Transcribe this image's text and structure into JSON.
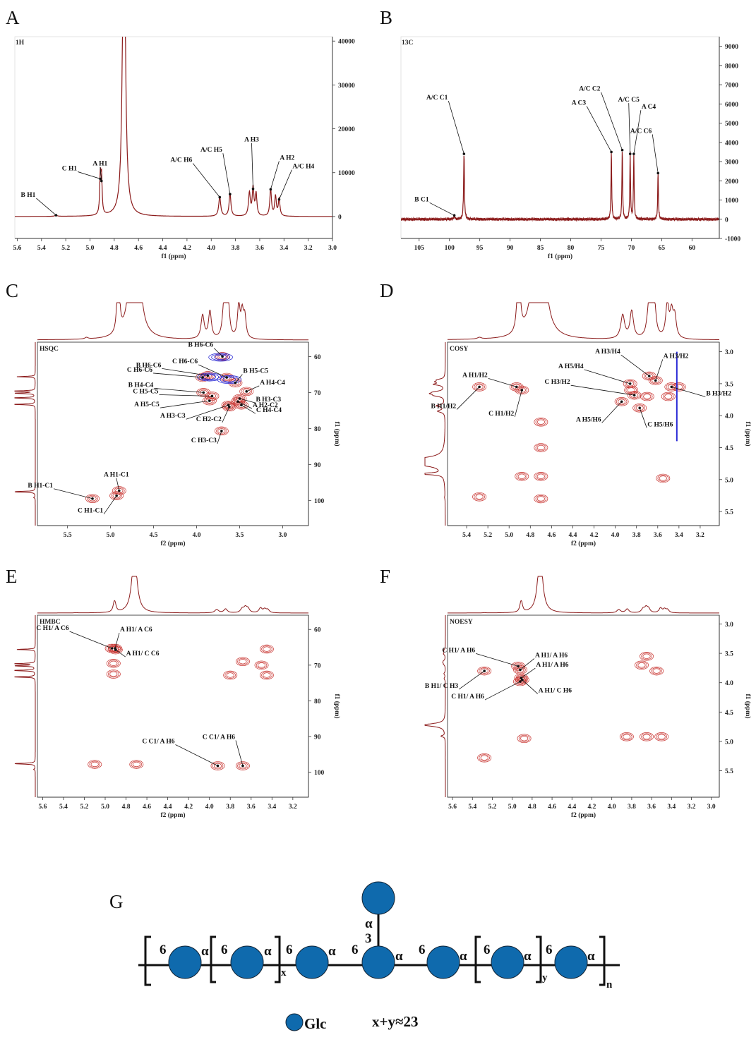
{
  "chart_data": [
    {
      "panel": "A",
      "type": "line",
      "title": "1H",
      "xlabel": "f1 (ppm)",
      "ylabel": "",
      "xlim": [
        5.62,
        3.0
      ],
      "ylim": [
        -5000,
        41000
      ],
      "xticks": [
        5.6,
        5.4,
        5.2,
        5.0,
        4.8,
        4.6,
        4.4,
        4.2,
        4.0,
        3.8,
        3.6,
        3.4,
        3.2,
        3.0
      ],
      "yticks": [
        0,
        10000,
        20000,
        30000,
        40000
      ],
      "peaks": [
        {
          "x": 4.72,
          "h": 80000,
          "w": 0.013
        },
        {
          "x": 4.915,
          "h": 8600,
          "w": 0.006
        },
        {
          "x": 4.905,
          "h": 8100,
          "w": 0.006
        },
        {
          "x": 5.28,
          "h": 300,
          "w": 0.01
        },
        {
          "x": 3.93,
          "h": 4400,
          "w": 0.01
        },
        {
          "x": 3.845,
          "h": 5100,
          "w": 0.009
        },
        {
          "x": 3.685,
          "h": 5200,
          "w": 0.009
        },
        {
          "x": 3.655,
          "h": 6300,
          "w": 0.008
        },
        {
          "x": 3.63,
          "h": 5000,
          "w": 0.008
        },
        {
          "x": 3.51,
          "h": 6200,
          "w": 0.008
        },
        {
          "x": 3.47,
          "h": 4500,
          "w": 0.008
        },
        {
          "x": 3.44,
          "h": 3900,
          "w": 0.008
        }
      ],
      "annotations": [
        {
          "text": "B H1",
          "x": 5.28,
          "y": 300
        },
        {
          "text": "C H1",
          "x": 4.915,
          "y": 8600
        },
        {
          "text": "A H1",
          "x": 4.905,
          "y": 8100
        },
        {
          "text": "A/C H6",
          "x": 3.93,
          "y": 4400
        },
        {
          "text": "A/C H5",
          "x": 3.845,
          "y": 5100
        },
        {
          "text": "A H3",
          "x": 3.655,
          "y": 6300
        },
        {
          "text": "A H2",
          "x": 3.51,
          "y": 6200
        },
        {
          "text": "A/C H4",
          "x": 3.44,
          "y": 3900
        }
      ]
    },
    {
      "panel": "B",
      "type": "line",
      "title": "13C",
      "xlabel": "f1 (ppm)",
      "ylabel": "",
      "xlim": [
        108,
        55.5
      ],
      "ylim": [
        -1000,
        9500
      ],
      "xticks": [
        105,
        100,
        95,
        90,
        85,
        80,
        75,
        70,
        65,
        60
      ],
      "yticks": [
        -1000,
        0,
        1000,
        2000,
        3000,
        4000,
        5000,
        6000,
        7000,
        8000,
        9000
      ],
      "peaks": [
        {
          "x": 97.6,
          "h": 3400,
          "w": 0.08
        },
        {
          "x": 99.2,
          "h": 200,
          "w": 0.1
        },
        {
          "x": 73.3,
          "h": 3500,
          "w": 0.07
        },
        {
          "x": 71.5,
          "h": 3600,
          "w": 0.07
        },
        {
          "x": 70.2,
          "h": 3400,
          "w": 0.07
        },
        {
          "x": 69.6,
          "h": 3400,
          "w": 0.07
        },
        {
          "x": 65.6,
          "h": 2400,
          "w": 0.07
        }
      ],
      "annotations": [
        {
          "text": "B C1",
          "x": 99.2,
          "y": 200
        },
        {
          "text": "A/C C1",
          "x": 97.6,
          "y": 3400
        },
        {
          "text": "A C3",
          "x": 73.3,
          "y": 3500
        },
        {
          "text": "A/C C2",
          "x": 71.5,
          "y": 3600
        },
        {
          "text": "A/C C5",
          "x": 70.2,
          "y": 3400
        },
        {
          "text": "A C4",
          "x": 69.6,
          "y": 3400
        },
        {
          "text": "A/C C6",
          "x": 65.6,
          "y": 2400
        }
      ]
    },
    {
      "panel": "C",
      "type": "heatmap",
      "title": "HSQC",
      "xlabel": "f2 (ppm)",
      "ylabel": "f1 (ppm)",
      "xlim": [
        5.85,
        2.7
      ],
      "ylim": [
        56,
        107
      ],
      "xticks": [
        5.5,
        5.0,
        4.5,
        4.0,
        3.5,
        3.0
      ],
      "yticks": [
        60,
        70,
        80,
        90,
        100
      ],
      "annotations": [
        {
          "text": "B H6-C6",
          "x": 3.7,
          "y": 60.0
        },
        {
          "text": "B H6-C6",
          "x": 3.87,
          "y": 65.3
        },
        {
          "text": "C H6-C6",
          "x": 3.93,
          "y": 65.8
        },
        {
          "text": "C H6-C6",
          "x": 3.65,
          "y": 65.8
        },
        {
          "text": "B H5-C5",
          "x": 3.55,
          "y": 67.3
        },
        {
          "text": "B H4-C4",
          "x": 3.92,
          "y": 70.0
        },
        {
          "text": "A H4-C4",
          "x": 3.42,
          "y": 69.7
        },
        {
          "text": "C H5-C5",
          "x": 3.82,
          "y": 71.0
        },
        {
          "text": "B H3-C3",
          "x": 3.5,
          "y": 71.7
        },
        {
          "text": "A H5-C5",
          "x": 3.85,
          "y": 72.3
        },
        {
          "text": "A H2-C2",
          "x": 3.52,
          "y": 72.5
        },
        {
          "text": "C H4-C4",
          "x": 3.48,
          "y": 73.5
        },
        {
          "text": "A H3-C3",
          "x": 3.63,
          "y": 73.5
        },
        {
          "text": "C H2-C2",
          "x": 3.62,
          "y": 74.0
        },
        {
          "text": "C H3-C3",
          "x": 3.71,
          "y": 80.7
        },
        {
          "text": "A H1-C1",
          "x": 4.9,
          "y": 97.3
        },
        {
          "text": "B H1-C1",
          "x": 5.21,
          "y": 99.5
        },
        {
          "text": "C H1-C1",
          "x": 4.93,
          "y": 98.7
        }
      ]
    },
    {
      "panel": "D",
      "type": "heatmap",
      "title": "COSY",
      "xlabel": "f2 (ppm)",
      "ylabel": "f1 (ppm)",
      "xlim": [
        5.58,
        3.02
      ],
      "ylim": [
        2.85,
        5.72
      ],
      "xticks": [
        5.4,
        5.2,
        5.0,
        4.8,
        4.6,
        4.4,
        4.2,
        4.0,
        3.8,
        3.6,
        3.4,
        3.2
      ],
      "yticks": [
        3.0,
        3.5,
        4.0,
        4.5,
        5.0,
        5.5
      ],
      "annotations": [
        {
          "text": "A H1/H2",
          "x": 4.93,
          "y": 3.55
        },
        {
          "text": "B H1/H2",
          "x": 5.28,
          "y": 3.55
        },
        {
          "text": "C H1/H2",
          "x": 4.88,
          "y": 3.6
        },
        {
          "text": "A H3/H4",
          "x": 3.68,
          "y": 3.38
        },
        {
          "text": "A H3/H2",
          "x": 3.62,
          "y": 3.45
        },
        {
          "text": "A H5/H4",
          "x": 3.86,
          "y": 3.5
        },
        {
          "text": "C H3/H2",
          "x": 3.82,
          "y": 3.68
        },
        {
          "text": "B H3/H2",
          "x": 3.47,
          "y": 3.55
        },
        {
          "text": "A H5/H6",
          "x": 3.94,
          "y": 3.78
        },
        {
          "text": "C H5/H6",
          "x": 3.77,
          "y": 3.88
        }
      ]
    },
    {
      "panel": "E",
      "type": "heatmap",
      "title": "HMBC",
      "xlabel": "f2 (ppm)",
      "ylabel": "f1 (ppm)",
      "xlim": [
        5.65,
        3.05
      ],
      "ylim": [
        56,
        107
      ],
      "xticks": [
        5.6,
        5.4,
        5.2,
        5.0,
        4.8,
        4.6,
        4.4,
        4.2,
        4.0,
        3.8,
        3.6,
        3.4,
        3.2
      ],
      "yticks": [
        60,
        70,
        80,
        90,
        100
      ],
      "annotations": [
        {
          "text": "C H1/ A C6",
          "x": 4.935,
          "y": 65.3
        },
        {
          "text": "A H1/ A C6",
          "x": 4.905,
          "y": 65.3
        },
        {
          "text": "A H1/ C C6",
          "x": 4.9,
          "y": 65.7
        },
        {
          "text": "C C1/ A H6",
          "x": 3.92,
          "y": 98.2
        },
        {
          "text": "C C1/ A H6",
          "x": 3.68,
          "y": 98.2
        }
      ]
    },
    {
      "panel": "F",
      "type": "heatmap",
      "title": "NOESY",
      "xlabel": "f2 (ppm)",
      "ylabel": "f1 (ppm)",
      "xlim": [
        5.65,
        2.92
      ],
      "ylim": [
        2.85,
        5.95
      ],
      "xticks": [
        5.6,
        5.4,
        5.2,
        5.0,
        4.8,
        4.6,
        4.4,
        4.2,
        4.0,
        3.8,
        3.6,
        3.4,
        3.2,
        3.0
      ],
      "yticks": [
        3.0,
        3.5,
        4.0,
        4.5,
        5.0,
        5.5
      ],
      "annotations": [
        {
          "text": "C H1/ A H6",
          "x": 4.94,
          "y": 3.72
        },
        {
          "text": "A H1/ A H6",
          "x": 4.92,
          "y": 3.78
        },
        {
          "text": "B H1/ C H3",
          "x": 5.28,
          "y": 3.8
        },
        {
          "text": "A H1/ A H6",
          "x": 4.91,
          "y": 3.92
        },
        {
          "text": "C H1/ A H6",
          "x": 4.92,
          "y": 3.98
        },
        {
          "text": "A H1/ C H6",
          "x": 4.9,
          "y": 3.95
        }
      ]
    }
  ],
  "panel_labels": [
    "A",
    "B",
    "C",
    "D",
    "E",
    "F",
    "G"
  ],
  "structure": {
    "label": "G",
    "units": [
      {
        "linkage": "6",
        "anomer": "α"
      },
      {
        "linkage": "6",
        "anomer": "α"
      },
      {
        "linkage": "6",
        "anomer": "α"
      },
      {
        "linkage": "6",
        "anomer": "α"
      },
      {
        "linkage": "6",
        "anomer": "α"
      },
      {
        "linkage": "6",
        "anomer": "α"
      },
      {
        "linkage": "6",
        "anomer": "α"
      }
    ],
    "branch": {
      "anomer": "α",
      "linkage": "3"
    },
    "repeat_x": "x",
    "repeat_y": "y",
    "repeat_n": "n",
    "legend_label": "Glc",
    "equation": "x+y≈23",
    "color": "#0f6aad"
  },
  "colors": {
    "spectrum": "#8b1a1a",
    "contour_pos": "#c8322e",
    "contour_neg": "#2b2bd6",
    "axis": "#333333"
  }
}
